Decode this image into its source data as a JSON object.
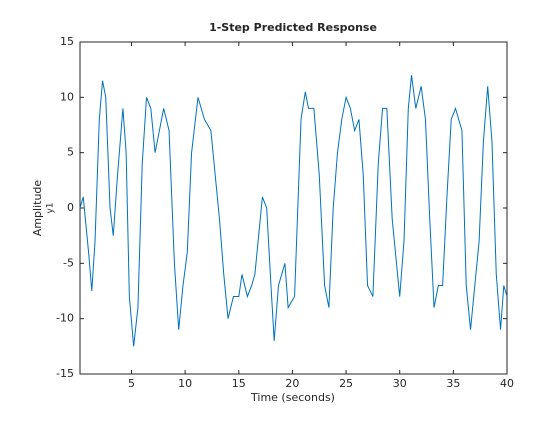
{
  "chart_data": {
    "type": "line",
    "title": "1-Step Predicted Response",
    "x_label": "Time (seconds)",
    "y_label": "Amplitude",
    "channel_label": "y1",
    "xlim": [
      0.2,
      40
    ],
    "xticks": [
      5,
      10,
      15,
      20,
      25,
      30,
      35,
      40
    ],
    "ylim": [
      -15,
      15
    ],
    "yticks": [
      -15,
      -10,
      -5,
      0,
      5,
      10,
      15
    ],
    "series": [
      {
        "name": "y1",
        "color": "#0072bd",
        "x": [
          0.2,
          0.5,
          1.0,
          1.3,
          1.6,
          2.0,
          2.3,
          2.6,
          3.0,
          3.3,
          3.7,
          4.2,
          4.5,
          4.8,
          5.2,
          5.6,
          6.0,
          6.4,
          6.8,
          7.2,
          7.6,
          8.0,
          8.5,
          9.0,
          9.4,
          9.8,
          10.2,
          10.6,
          11.2,
          11.8,
          12.4,
          12.8,
          13.2,
          13.6,
          14.0,
          14.5,
          15.0,
          15.3,
          15.8,
          16.2,
          16.5,
          17.2,
          17.6,
          18.0,
          18.3,
          18.7,
          19.3,
          19.6,
          20.2,
          20.8,
          21.2,
          21.5,
          22.0,
          22.5,
          23.0,
          23.4,
          23.8,
          24.2,
          24.6,
          25.0,
          25.4,
          25.8,
          26.2,
          26.6,
          27.0,
          27.5,
          28.0,
          28.4,
          28.8,
          29.3,
          29.6,
          30.0,
          30.4,
          30.8,
          31.1,
          31.5,
          32.0,
          32.4,
          32.8,
          33.2,
          33.6,
          34.0,
          34.4,
          34.8,
          35.2,
          35.8,
          36.2,
          36.6,
          37.0,
          37.4,
          37.8,
          38.2,
          38.6,
          39.0,
          39.4,
          39.7,
          40.0
        ],
        "values": [
          0,
          1,
          -4,
          -7.5,
          -3,
          8,
          11.5,
          10,
          0,
          -2.5,
          3,
          9,
          5,
          -8,
          -12.5,
          -9,
          4,
          10,
          9,
          5,
          7,
          9,
          7,
          -5,
          -11,
          -7,
          -4,
          5,
          10,
          8,
          7,
          3,
          -1,
          -6,
          -10,
          -8,
          -8,
          -6,
          -8,
          -7,
          -6,
          1,
          0,
          -7,
          -12,
          -7,
          -5,
          -9,
          -8,
          8,
          10.5,
          9,
          9,
          3,
          -7,
          -9,
          0,
          5,
          8,
          10,
          9,
          7,
          8,
          3,
          -7,
          -8,
          4,
          9,
          9,
          -1,
          -4,
          -8,
          -3,
          9,
          12,
          9,
          11,
          8,
          -1,
          -9,
          -7,
          -7,
          1,
          8,
          9,
          7,
          -7,
          -11,
          -7,
          -3,
          6,
          11,
          6,
          -6,
          -11,
          -7,
          -8
        ]
      }
    ]
  }
}
